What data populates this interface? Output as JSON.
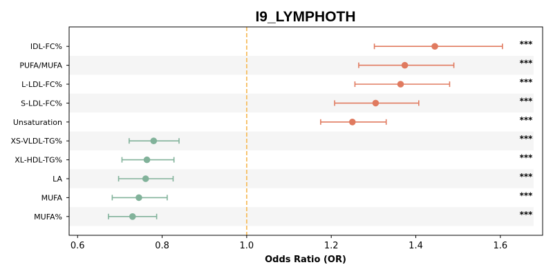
{
  "chart_data": {
    "type": "scatter",
    "title": "I9_LYMPHOTH",
    "xlabel": "Odds Ratio (OR)",
    "ylabel": "",
    "xlim": [
      0.58,
      1.7
    ],
    "xticks": [
      0.6,
      0.8,
      1.0,
      1.2,
      1.4,
      1.6
    ],
    "xtick_labels": [
      "0.6",
      "0.8",
      "1.0",
      "1.2",
      "1.4",
      "1.6"
    ],
    "reference_line": 1.0,
    "grid": false,
    "row_shading": "alternating",
    "colors": {
      "risk": "#e07a5f",
      "protective": "#81b29a",
      "reference": "#f6bd60",
      "shade": "#f5f5f5"
    },
    "points": [
      {
        "label": "IDL-FC%",
        "or": 1.445,
        "lower": 1.302,
        "upper": 1.605,
        "sig": "***",
        "group": "risk"
      },
      {
        "label": "PUFA/MUFA",
        "or": 1.374,
        "lower": 1.265,
        "upper": 1.49,
        "sig": "***",
        "group": "risk"
      },
      {
        "label": "L-LDL-FC%",
        "or": 1.364,
        "lower": 1.256,
        "upper": 1.48,
        "sig": "***",
        "group": "risk"
      },
      {
        "label": "S-LDL-FC%",
        "or": 1.305,
        "lower": 1.208,
        "upper": 1.407,
        "sig": "***",
        "group": "risk"
      },
      {
        "label": "Unsaturation",
        "or": 1.25,
        "lower": 1.175,
        "upper": 1.33,
        "sig": "***",
        "group": "risk"
      },
      {
        "label": "XS-VLDL-TG%",
        "or": 0.78,
        "lower": 0.722,
        "upper": 0.84,
        "sig": "***",
        "group": "protective"
      },
      {
        "label": "XL-HDL-TG%",
        "or": 0.764,
        "lower": 0.705,
        "upper": 0.828,
        "sig": "***",
        "group": "protective"
      },
      {
        "label": "LA",
        "or": 0.761,
        "lower": 0.697,
        "upper": 0.826,
        "sig": "***",
        "group": "protective"
      },
      {
        "label": "MUFA",
        "or": 0.745,
        "lower": 0.682,
        "upper": 0.812,
        "sig": "***",
        "group": "protective"
      },
      {
        "label": "MUFA%",
        "or": 0.73,
        "lower": 0.673,
        "upper": 0.787,
        "sig": "***",
        "group": "protective"
      }
    ]
  }
}
